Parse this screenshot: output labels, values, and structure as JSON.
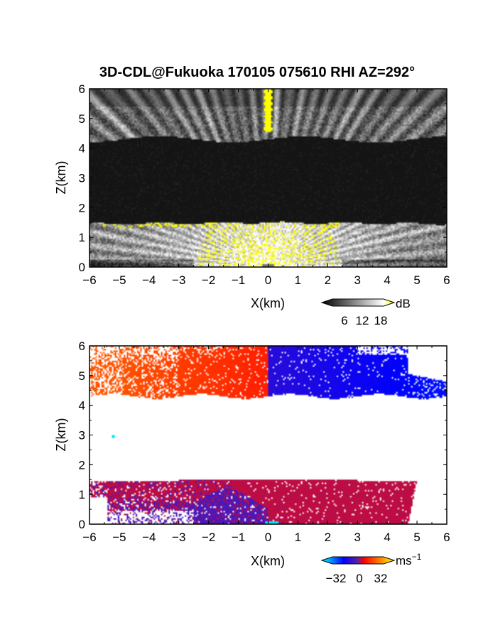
{
  "title": "3D-CDL@Fukuoka 170105 075610 RHI AZ=292°",
  "chart_data": [
    {
      "type": "heatmap",
      "panel": "top",
      "title": "3D-CDL@Fukuoka 170105 075610 RHI AZ=292°",
      "xlabel": "X(km)",
      "ylabel": "Z(km)",
      "xlim": [
        -6,
        6
      ],
      "ylim": [
        0,
        6
      ],
      "xticks": [
        -6,
        -5,
        -4,
        -3,
        -2,
        -1,
        0,
        1,
        2,
        3,
        4,
        5,
        6
      ],
      "yticks": [
        0,
        1,
        2,
        3,
        4,
        5,
        6
      ],
      "xtick_labels": [
        "−6",
        "−5",
        "−4",
        "−3",
        "−2",
        "−1",
        "0",
        "1",
        "2",
        "3",
        "4",
        "5",
        "6"
      ],
      "ytick_labels": [
        "0",
        "1",
        "2",
        "3",
        "4",
        "5",
        "6"
      ],
      "colorbar": {
        "unit": "dB",
        "ticks": [
          6,
          12,
          18
        ],
        "tick_labels": [
          "6",
          "12",
          "18"
        ],
        "colors": [
          "#000000",
          "#ffffff",
          "#ffff00"
        ]
      },
      "layers": [
        {
          "name": "lower echo layer",
          "z_range": [
            0,
            1.5
          ],
          "x_range": [
            -6,
            6
          ],
          "value_range_dB": [
            3,
            20
          ]
        },
        {
          "name": "gap",
          "z_range": [
            1.5,
            4.3
          ],
          "x_range": [
            -6,
            6
          ],
          "value_range_dB": [
            0,
            4
          ]
        },
        {
          "name": "upper echo layer",
          "z_range": [
            4.3,
            6
          ],
          "x_range": [
            -6,
            6
          ],
          "value_range_dB": [
            3,
            14
          ]
        }
      ]
    },
    {
      "type": "heatmap",
      "panel": "bottom",
      "xlabel": "X(km)",
      "ylabel": "Z(km)",
      "xlim": [
        -6,
        6
      ],
      "ylim": [
        0,
        6
      ],
      "xticks": [
        -6,
        -5,
        -4,
        -3,
        -2,
        -1,
        0,
        1,
        2,
        3,
        4,
        5,
        6
      ],
      "yticks": [
        0,
        1,
        2,
        3,
        4,
        5,
        6
      ],
      "xtick_labels": [
        "−6",
        "−5",
        "−4",
        "−3",
        "−2",
        "−1",
        "0",
        "1",
        "2",
        "3",
        "4",
        "5",
        "6"
      ],
      "ytick_labels": [
        "0",
        "1",
        "2",
        "3",
        "4",
        "5",
        "6"
      ],
      "colorbar": {
        "unit": "ms",
        "unit_exponent": "−1",
        "ticks": [
          -32,
          0,
          32
        ],
        "tick_labels": [
          "−32",
          "0",
          "32"
        ],
        "colors": [
          "#00ffff",
          "#0000ff",
          "#ff0000",
          "#ffff00"
        ]
      },
      "layers": [
        {
          "name": "upper layer",
          "z_range": [
            4.3,
            6
          ],
          "x_range": [
            -6,
            6
          ],
          "velocity_left_ms": 14,
          "velocity_right_ms": -14
        },
        {
          "name": "lower layer",
          "z_range": [
            0,
            1.5
          ],
          "x_range": [
            -6,
            5
          ],
          "velocity_ms": [
            -3,
            3
          ]
        }
      ]
    }
  ]
}
